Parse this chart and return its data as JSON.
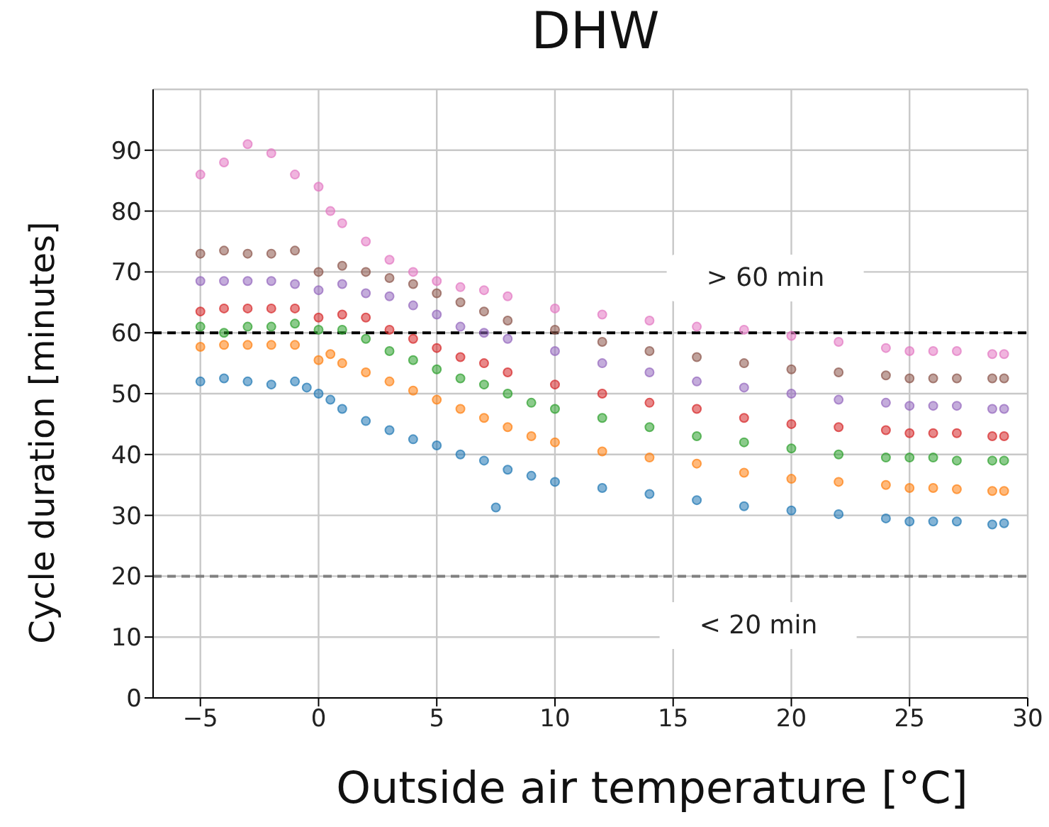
{
  "chart_data": {
    "type": "scatter",
    "title": "DHW",
    "xlabel": "Outside air temperature [°C]",
    "ylabel": "Cycle duration [minutes]",
    "annotations": [
      "> 60 min",
      "< 20 min"
    ],
    "xlim": [
      -7,
      30
    ],
    "xticks": [
      -5,
      0,
      5,
      10,
      15,
      20,
      25,
      30
    ],
    "ylim": [
      0,
      100
    ],
    "yticks": [
      0,
      10,
      20,
      30,
      40,
      50,
      60,
      70,
      80,
      90
    ],
    "grid": true,
    "marker": "circle",
    "ref_lines": [
      {
        "axis": "y",
        "value": 60,
        "color": "#000000",
        "line_style": "dashed"
      },
      {
        "axis": "y",
        "value": 20,
        "color": "#808080",
        "line_style": "dashed"
      }
    ],
    "series": [
      {
        "color": "#1f77b4",
        "x": [
          -5,
          -4,
          -3,
          -2,
          -1,
          -0.5,
          0,
          0.5,
          1,
          2,
          3,
          4,
          5,
          6,
          7,
          7.5,
          8,
          9,
          10,
          12,
          14,
          16,
          18,
          20,
          22,
          24,
          25,
          26,
          27,
          28.5,
          29
        ],
        "values": [
          52,
          52.5,
          52,
          51.5,
          52,
          51,
          50,
          49,
          47.5,
          45.5,
          44,
          42.5,
          41.5,
          40,
          39,
          31.3,
          37.5,
          36.5,
          35.5,
          34.5,
          33.5,
          32.5,
          31.5,
          30.8,
          30.2,
          29.5,
          29,
          29,
          29,
          28.5,
          28.7
        ]
      },
      {
        "color": "#ff7f0e",
        "x": [
          -5,
          -4,
          -3,
          -2,
          -1,
          0,
          0.5,
          1,
          2,
          3,
          4,
          5,
          6,
          7,
          8,
          9,
          10,
          12,
          14,
          16,
          18,
          20,
          22,
          24,
          25,
          26,
          27,
          28.5,
          29
        ],
        "values": [
          57.7,
          58,
          58,
          58,
          58,
          55.5,
          56.5,
          55,
          53.5,
          52,
          50.5,
          49,
          47.5,
          46,
          44.5,
          43,
          42,
          40.5,
          39.5,
          38.5,
          37,
          36,
          35.5,
          35,
          34.5,
          34.5,
          34.3,
          34,
          34
        ]
      },
      {
        "color": "#2ca02c",
        "x": [
          -5,
          -4,
          -3,
          -2,
          -1,
          0,
          1,
          2,
          3,
          4,
          5,
          6,
          7,
          8,
          9,
          10,
          12,
          14,
          16,
          18,
          20,
          22,
          24,
          25,
          26,
          27,
          28.5,
          29
        ],
        "values": [
          61,
          60,
          61,
          61,
          61.5,
          60.5,
          60.5,
          59,
          57,
          55.5,
          54,
          52.5,
          51.5,
          50,
          48.5,
          47.5,
          46,
          44.5,
          43,
          42,
          41,
          40,
          39.5,
          39.5,
          39.5,
          39,
          39,
          39
        ]
      },
      {
        "color": "#d62728",
        "x": [
          -5,
          -4,
          -3,
          -2,
          -1,
          0,
          1,
          2,
          3,
          4,
          5,
          6,
          7,
          8,
          10,
          12,
          14,
          16,
          18,
          20,
          22,
          24,
          25,
          26,
          27,
          28.5,
          29
        ],
        "values": [
          63.5,
          64,
          64,
          64,
          64,
          62.5,
          63,
          62.5,
          60.5,
          59,
          57.5,
          56,
          55,
          53.5,
          51.5,
          50,
          48.5,
          47.5,
          46,
          45,
          44.5,
          44,
          43.5,
          43.5,
          43.5,
          43,
          43
        ]
      },
      {
        "color": "#9467bd",
        "x": [
          -5,
          -4,
          -3,
          -2,
          -1,
          0,
          1,
          2,
          3,
          4,
          5,
          6,
          7,
          8,
          10,
          12,
          14,
          16,
          18,
          20,
          22,
          24,
          25,
          26,
          27,
          28.5,
          29
        ],
        "values": [
          68.5,
          68.5,
          68.5,
          68.5,
          68,
          67,
          68,
          66.5,
          66,
          64.5,
          63,
          61,
          60,
          59,
          57,
          55,
          53.5,
          52,
          51,
          50,
          49,
          48.5,
          48,
          48,
          48,
          47.5,
          47.5
        ]
      },
      {
        "color": "#8c564b",
        "x": [
          -5,
          -4,
          -3,
          -2,
          -1,
          0,
          1,
          2,
          3,
          4,
          5,
          6,
          7,
          8,
          10,
          12,
          14,
          16,
          18,
          20,
          22,
          24,
          25,
          26,
          27,
          28.5,
          29
        ],
        "values": [
          73,
          73.5,
          73,
          73,
          73.5,
          70,
          71,
          70,
          69,
          68,
          66.5,
          65,
          63.5,
          62,
          60.5,
          58.5,
          57,
          56,
          55,
          54,
          53.5,
          53,
          52.5,
          52.5,
          52.5,
          52.5,
          52.5
        ]
      },
      {
        "color": "#e377c2",
        "x": [
          -5,
          -4,
          -3,
          -2,
          -1,
          0,
          0.5,
          1,
          2,
          3,
          4,
          5,
          6,
          7,
          8,
          10,
          12,
          14,
          16,
          18,
          20,
          22,
          24,
          25,
          26,
          27,
          28.5,
          29
        ],
        "values": [
          86,
          88,
          91,
          89.5,
          86,
          84,
          80,
          78,
          75,
          72,
          70,
          68.5,
          67.5,
          67,
          66,
          64,
          63,
          62,
          61,
          60.5,
          59.5,
          58.5,
          57.5,
          57,
          57,
          57,
          56.5,
          56.5
        ]
      }
    ]
  }
}
